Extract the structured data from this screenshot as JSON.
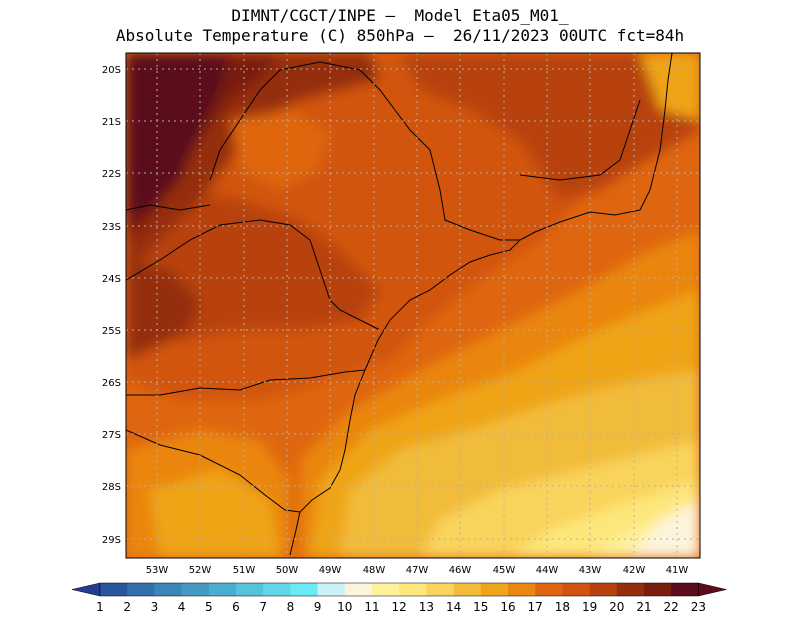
{
  "header": {
    "line1": "DIMNT/CGCT/INPE –  Model Eta05_M01_",
    "line2": "Absolute Temperature (C) 850hPa –  26/11/2023 00UTC fct=84h"
  },
  "map": {
    "lat_labels": [
      "20S",
      "21S",
      "22S",
      "23S",
      "24S",
      "25S",
      "26S",
      "27S",
      "28S",
      "29S"
    ],
    "lon_labels": [
      "53W",
      "52W",
      "51W",
      "50W",
      "49W",
      "48W",
      "47W",
      "46W",
      "45W",
      "44W",
      "43W",
      "42W",
      "41W"
    ]
  },
  "colorbar": {
    "labels": [
      "1",
      "2",
      "3",
      "4",
      "5",
      "6",
      "7",
      "8",
      "9",
      "10",
      "11",
      "12",
      "13",
      "14",
      "15",
      "16",
      "17",
      "18",
      "19",
      "20",
      "21",
      "22",
      "23"
    ],
    "colors": [
      "#233e8e",
      "#2a56a0",
      "#3470ae",
      "#3b87b9",
      "#4299c4",
      "#4aaed0",
      "#55c3dc",
      "#5fd7e8",
      "#68ebf4",
      "#c9f1f8",
      "#fdf4dc",
      "#fef19a",
      "#fde77a",
      "#f9d45c",
      "#f2bc3a",
      "#efa419",
      "#ea8611",
      "#df6610",
      "#d15410",
      "#b8420f",
      "#952e0d",
      "#7a1f0e",
      "#5c0c1c"
    ],
    "left_arrow_color": "#233e8e",
    "right_arrow_color": "#5c0c1c"
  }
}
